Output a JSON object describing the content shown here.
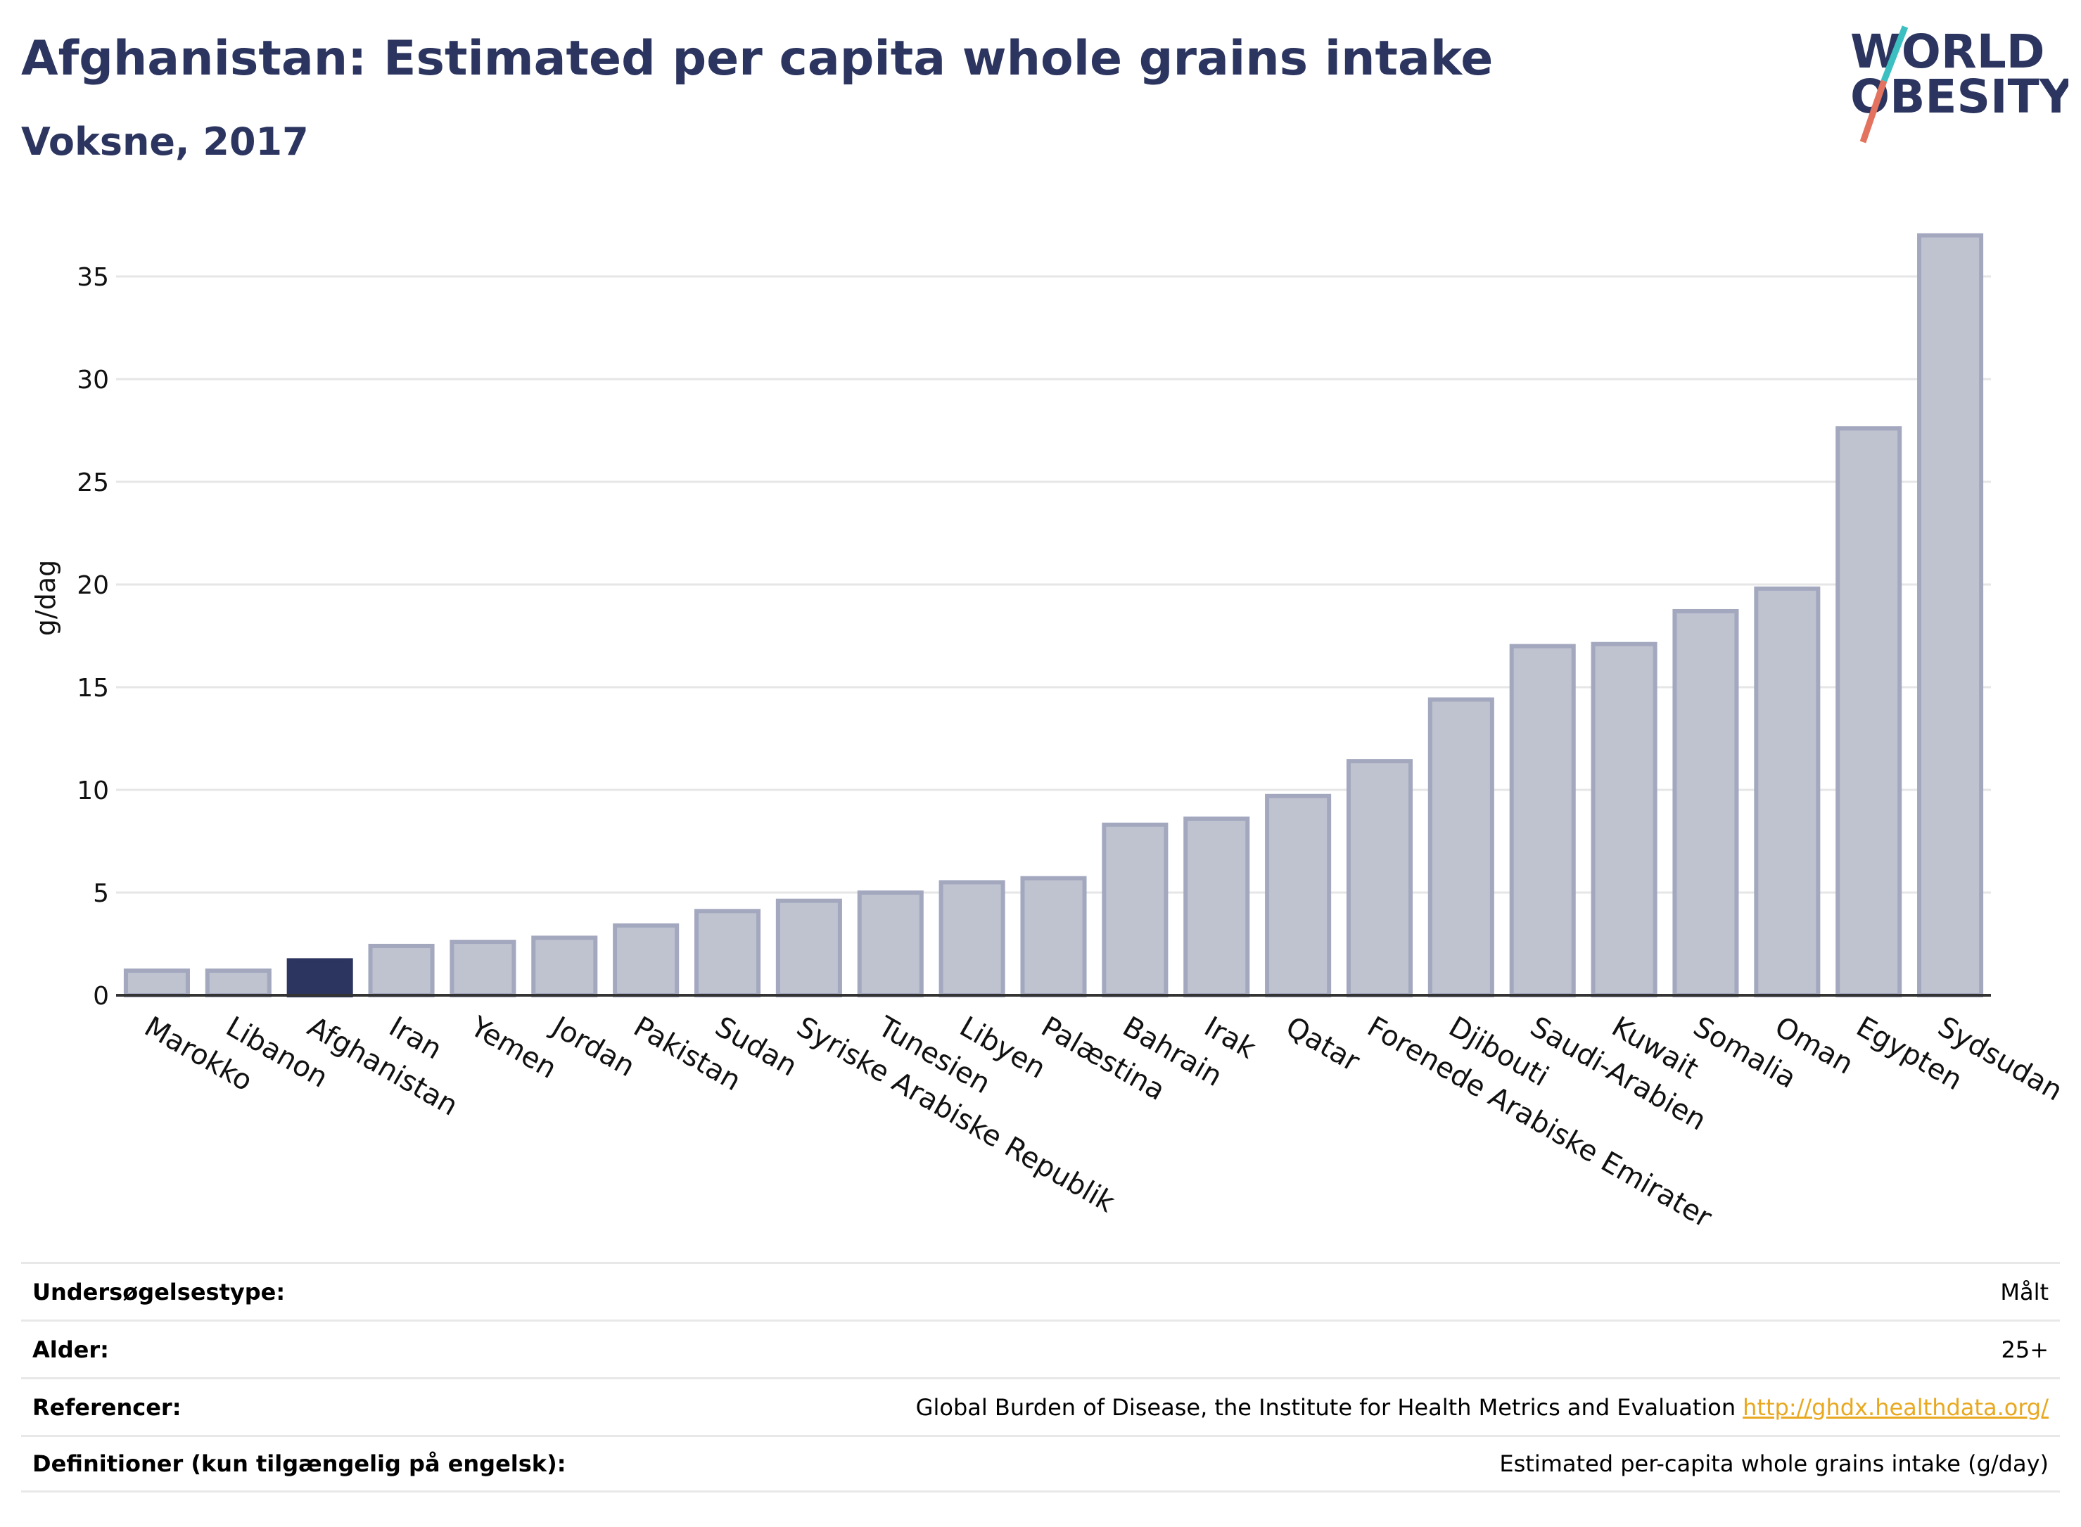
{
  "header": {
    "title": "Afghanistan: Estimated per capita whole grains intake",
    "subtitle": "Voksne, 2017"
  },
  "logo": {
    "line1": "WORLD",
    "line2": "OBESITY",
    "slash_color_top": "#3bbfc0",
    "slash_color_bottom": "#e3735e",
    "text_color": "#2c355f"
  },
  "colors": {
    "bar_fill": "#bfc2cf",
    "bar_stroke": "#a3a8bf",
    "highlight_fill": "#2c355f",
    "grid": "#e6e6e6",
    "axis": "#333333"
  },
  "chart_data": {
    "type": "bar",
    "categories": [
      "Marokko",
      "Libanon",
      "Afghanistan",
      "Iran",
      "Yemen",
      "Jordan",
      "Pakistan",
      "Sudan",
      "Syriske Arabiske Republik",
      "Tunesien",
      "Libyen",
      "Palæstina",
      "Bahrain",
      "Irak",
      "Qatar",
      "Forenede Arabiske Emirater",
      "Djibouti",
      "Saudi-Arabien",
      "Kuwait",
      "Somalia",
      "Oman",
      "Egypten",
      "Sydsudan"
    ],
    "values": [
      1.2,
      1.2,
      1.7,
      2.4,
      2.6,
      2.8,
      3.4,
      4.1,
      4.6,
      5.0,
      5.5,
      5.7,
      8.3,
      8.6,
      9.7,
      11.4,
      14.4,
      17.0,
      17.1,
      18.7,
      19.8,
      27.6,
      37.0
    ],
    "highlight": "Afghanistan",
    "ylabel": "g/dag",
    "yticks": [
      0,
      5,
      10,
      15,
      20,
      25,
      30,
      35
    ],
    "ylim": [
      0,
      38.5
    ],
    "grid": true
  },
  "meta": [
    {
      "label": "Undersøgelsestype:",
      "value": "Målt",
      "link": ""
    },
    {
      "label": "Alder:",
      "value": "25+",
      "link": ""
    },
    {
      "label": "Referencer:",
      "value": "Global Burden of Disease, the Institute for Health Metrics and Evaluation",
      "link": "http://ghdx.healthdata.org/"
    },
    {
      "label": "Definitioner (kun tilgængelig på engelsk):",
      "value": "Estimated per-capita whole grains intake (g/day)",
      "link": ""
    }
  ]
}
